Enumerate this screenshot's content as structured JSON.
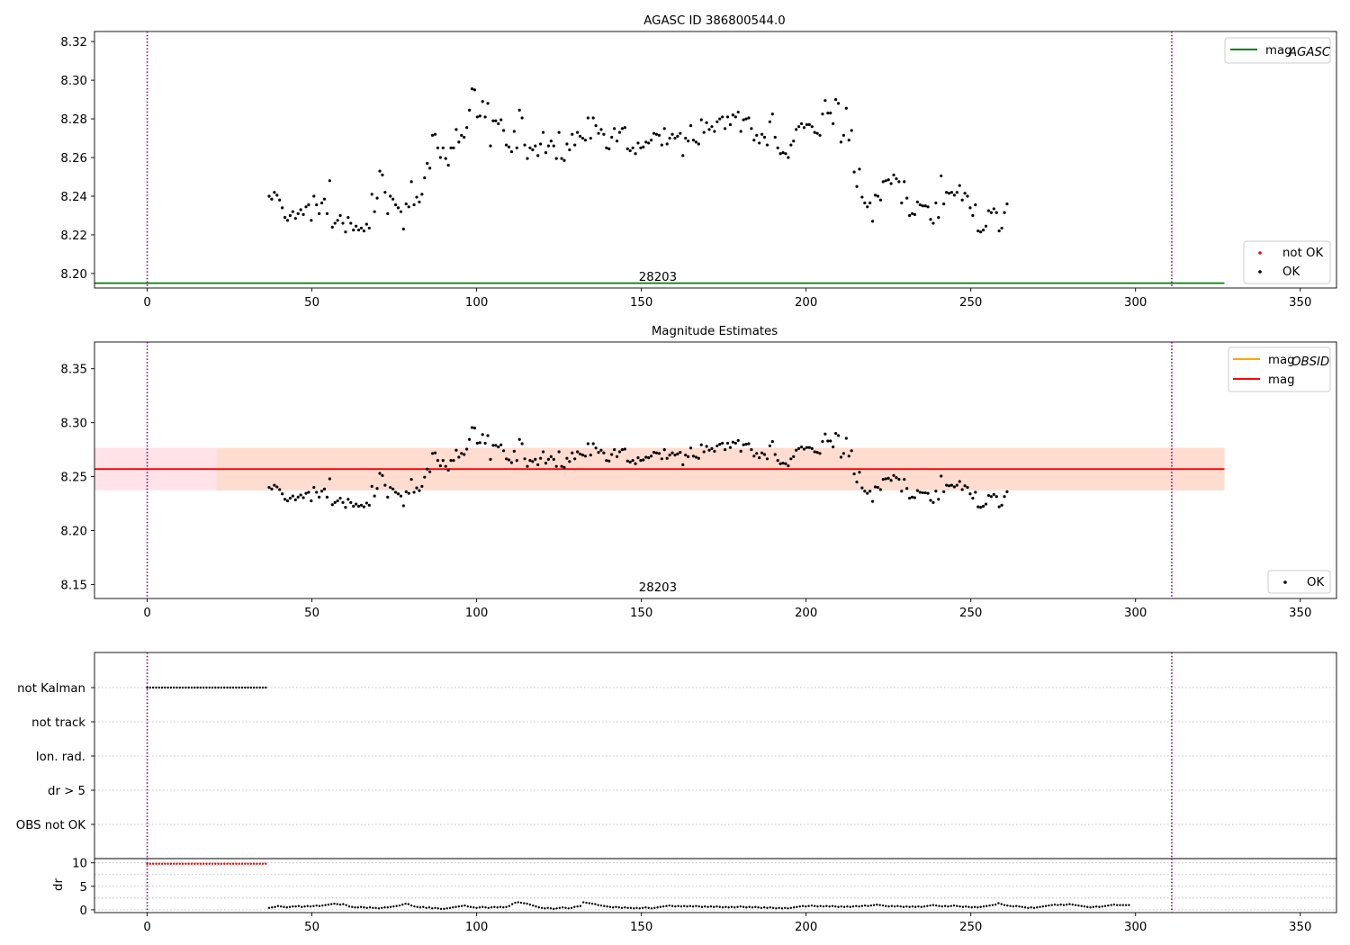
{
  "colors": {
    "ok": "#000000",
    "not_ok": "#ff0000",
    "agasc": "#008000",
    "mag": "#ff0000",
    "obsid": "#ffa500",
    "obsid_band": "#ffdac8",
    "mag_band": "#ffc0cb",
    "vline": "#800080"
  },
  "chart_data": [
    {
      "type": "scatter",
      "title": "AGASC ID 386800544.0",
      "xlim": [
        -16,
        361
      ],
      "ylim": [
        8.1925,
        8.3252
      ],
      "xticks": [
        0,
        50,
        100,
        150,
        200,
        250,
        300,
        350
      ],
      "yticks": [
        "8.20",
        "8.22",
        "8.24",
        "8.26",
        "8.28",
        "8.30",
        "8.32"
      ],
      "legend_lines": {
        "agasc": "mag",
        "agasc_sub": "AGASC"
      },
      "legend_points": {
        "not_ok": "not OK",
        "ok": "OK"
      },
      "agasc_mag": 8.195,
      "agasc_line_x": [
        -16,
        327
      ],
      "obsid_label": "28203",
      "obsid_label_x": 155,
      "vlines": [
        0,
        311
      ]
    },
    {
      "type": "scatter",
      "title": "Magnitude Estimates",
      "xlim": [
        -16,
        361
      ],
      "ylim": [
        8.137,
        8.3748
      ],
      "xticks": [
        0,
        50,
        100,
        150,
        200,
        250,
        300,
        350
      ],
      "yticks": [
        "8.15",
        "8.20",
        "8.25",
        "8.30",
        "8.35"
      ],
      "legend_lines": {
        "obsid": "mag",
        "obsid_sub": "OBSID",
        "mag": "mag"
      },
      "legend_points": {
        "ok": "OK"
      },
      "mag": 8.257,
      "mag_band": [
        8.2373,
        8.2767
      ],
      "obsid_mag": 8.257,
      "obsid_band": [
        8.2373,
        8.2767
      ],
      "line_x": [
        -16,
        327
      ],
      "obsid_label": "28203",
      "obsid_label_x": 155,
      "vlines": [
        0,
        311
      ]
    },
    {
      "type": "scatter",
      "xlim": [
        -16,
        361
      ],
      "categories": [
        "not Kalman",
        "not track",
        "Ion. rad.",
        "dr > 5",
        "OBS not OK"
      ],
      "flag_not_kalman_x": [
        0,
        36.5
      ],
      "vlines": [
        0,
        311
      ]
    },
    {
      "type": "scatter",
      "ylabel": "dr",
      "xlim": [
        -16,
        361
      ],
      "ylim": [
        -0.6,
        10.9
      ],
      "xticks": [
        0,
        50,
        100,
        150,
        200,
        250,
        300,
        350
      ],
      "yticks": [
        "0",
        "5",
        "10"
      ],
      "red_x": [
        0,
        36.5
      ],
      "red_y": 9.8,
      "vlines": [
        0,
        311
      ]
    }
  ],
  "mag_series": {
    "x_start": 37,
    "x_step": 0.8,
    "y": [
      8.24,
      8.2385,
      8.242,
      8.2405,
      8.238,
      8.234,
      8.229,
      8.2275,
      8.23,
      8.232,
      8.2285,
      8.231,
      8.233,
      8.2305,
      8.2345,
      8.2355,
      8.2275,
      8.24,
      8.2355,
      8.231,
      8.2365,
      8.2385,
      8.231,
      8.248,
      8.224,
      8.226,
      8.2275,
      8.23,
      8.226,
      8.2215,
      8.229,
      8.226,
      8.2225,
      8.2245,
      8.2225,
      8.2235,
      8.222,
      8.2255,
      8.2235,
      8.241,
      8.232,
      8.239,
      8.253,
      8.251,
      8.242,
      8.231,
      8.24,
      8.2385,
      8.2355,
      8.234,
      8.232,
      8.223,
      8.236,
      8.2345,
      8.2475,
      8.2355,
      8.2395,
      8.237,
      8.241,
      8.2495,
      8.257,
      8.2545,
      8.2715,
      8.272,
      8.265,
      8.26,
      8.265,
      8.2595,
      8.256,
      8.265,
      8.265,
      8.2745,
      8.268,
      8.2715,
      8.2705,
      8.2755,
      8.2845,
      8.2955,
      8.295,
      8.281,
      8.2815,
      8.289,
      8.281,
      8.288,
      8.266,
      8.279,
      8.279,
      8.2775,
      8.2795,
      8.274,
      8.2665,
      8.2655,
      8.263,
      8.2735,
      8.265,
      8.2845,
      8.2805,
      8.2665,
      8.2595,
      8.265,
      8.264,
      8.266,
      8.261,
      8.267,
      8.273,
      8.2625,
      8.266,
      8.2685,
      8.266,
      8.2595,
      8.273,
      8.2595,
      8.2585,
      8.267,
      8.264,
      8.272,
      8.2665,
      8.273,
      8.271,
      8.27,
      8.269,
      8.2805,
      8.27,
      8.2805,
      8.2765,
      8.2725,
      8.2745,
      8.272,
      8.265,
      8.2645,
      8.2705,
      8.275,
      8.2685,
      8.273,
      8.275,
      8.2755,
      8.2645,
      8.2635,
      8.265,
      8.262,
      8.2675,
      8.265,
      8.2655,
      8.268,
      8.2675,
      8.269,
      8.2725,
      8.272,
      8.2715,
      8.2665,
      8.275,
      8.267,
      8.27,
      8.272,
      8.27,
      8.271,
      8.2725,
      8.261,
      8.27,
      8.2685,
      8.2765,
      8.269,
      8.268,
      8.267,
      8.2795,
      8.273,
      8.278,
      8.2745,
      8.276,
      8.2735,
      8.2785,
      8.28,
      8.281,
      8.275,
      8.281,
      8.277,
      8.282,
      8.281,
      8.2835,
      8.2735,
      8.2795,
      8.28,
      8.2805,
      8.275,
      8.269,
      8.2715,
      8.2675,
      8.272,
      8.2705,
      8.2665,
      8.2785,
      8.2825,
      8.2705,
      8.265,
      8.262,
      8.2625,
      8.262,
      8.26,
      8.2665,
      8.2685,
      8.2745,
      8.276,
      8.2775,
      8.2755,
      8.277,
      8.277,
      8.276,
      8.273,
      8.2725,
      8.2715,
      8.2825,
      8.2895,
      8.283,
      8.283,
      8.2775,
      8.29,
      8.288,
      8.268,
      8.2715,
      8.2855,
      8.269,
      8.274,
      8.2525,
      8.245,
      8.254,
      8.2395,
      8.2365,
      8.2345,
      8.2365,
      8.227,
      8.2405,
      8.24,
      8.238,
      8.2475,
      8.248,
      8.2485,
      8.2465,
      8.251,
      8.249,
      8.2475,
      8.2365,
      8.2475,
      8.239,
      8.23,
      8.231,
      8.2305,
      8.237,
      8.2355,
      8.235,
      8.235,
      8.2345,
      8.228,
      8.226,
      8.2365,
      8.229,
      8.2505,
      8.236,
      8.242,
      8.2415,
      8.242,
      8.2405,
      8.242,
      8.2455,
      8.238,
      8.2415,
      8.24,
      8.234,
      8.23,
      8.2355,
      8.222,
      8.2215,
      8.2225,
      8.2245,
      8.2325,
      8.2315,
      8.2335,
      8.2315,
      8.222,
      8.2235,
      8.2315,
      8.236
    ]
  },
  "dr_series": {
    "x_start": 37,
    "x_step": 0.9,
    "y": [
      0.4,
      0.5,
      0.6,
      0.8,
      0.7,
      0.6,
      0.5,
      0.6,
      0.7,
      0.7,
      0.8,
      0.6,
      0.7,
      0.8,
      0.7,
      0.8,
      0.9,
      0.8,
      0.9,
      1.0,
      1.1,
      1.2,
      1.3,
      1.2,
      1.1,
      1.2,
      1.0,
      0.7,
      0.6,
      0.5,
      0.5,
      0.6,
      0.5,
      0.4,
      0.5,
      0.4,
      0.4,
      0.3,
      0.4,
      0.5,
      0.5,
      0.6,
      0.7,
      0.8,
      0.9,
      1.1,
      1.3,
      1.2,
      0.9,
      0.7,
      0.6,
      0.5,
      0.6,
      0.4,
      0.5,
      0.3,
      0.4,
      0.3,
      0.2,
      0.2,
      0.3,
      0.4,
      0.5,
      0.6,
      0.7,
      0.8,
      0.9,
      0.7,
      0.6,
      0.5,
      0.4,
      0.5,
      0.6,
      0.5,
      0.4,
      0.5,
      0.6,
      0.5,
      0.6,
      0.5,
      0.6,
      0.8,
      1.2,
      1.5,
      1.6,
      1.5,
      1.4,
      1.3,
      1.1,
      0.9,
      0.7,
      0.5,
      0.4,
      0.3,
      0.4,
      0.3,
      0.2,
      0.3,
      0.4,
      0.5,
      0.4,
      0.3,
      0.4,
      0.6,
      0.7,
      0.8,
      1.6,
      1.5,
      1.4,
      1.3,
      1.2,
      1.0,
      0.9,
      0.8,
      0.7,
      0.6,
      0.5,
      0.6,
      0.5,
      0.4,
      0.5,
      0.4,
      0.4,
      0.3,
      0.4,
      0.3,
      0.4,
      0.5,
      0.4,
      0.3,
      0.4,
      0.5,
      0.6,
      0.7,
      0.8,
      0.9,
      0.8,
      0.7,
      0.8,
      0.7,
      0.8,
      0.7,
      0.8,
      0.7,
      0.8,
      0.7,
      0.6,
      0.7,
      0.6,
      0.7,
      0.6,
      0.7,
      0.6,
      0.5,
      0.6,
      0.5,
      0.6,
      0.5,
      0.6,
      0.7,
      0.6,
      0.5,
      0.6,
      0.5,
      0.6,
      0.5,
      0.4,
      0.5,
      0.4,
      0.5,
      0.4,
      0.3,
      0.4,
      0.3,
      0.4,
      0.3,
      0.4,
      0.5,
      0.6,
      0.7,
      0.8,
      0.7,
      0.8,
      0.9,
      0.8,
      0.7,
      0.8,
      0.7,
      0.8,
      0.7,
      0.8,
      0.7,
      0.6,
      0.7,
      0.6,
      0.7,
      0.6,
      0.7,
      0.8,
      0.7,
      0.8,
      0.9,
      0.8,
      0.9,
      1.0,
      1.1,
      1.0,
      0.9,
      0.8,
      0.7,
      0.8,
      0.7,
      0.8,
      0.7,
      0.6,
      0.7,
      0.6,
      0.7,
      0.6,
      0.7,
      0.6,
      0.7,
      0.8,
      0.9,
      1.0,
      0.9,
      0.8,
      0.7,
      0.8,
      0.7,
      0.8,
      0.9,
      0.8,
      0.7,
      0.6,
      0.7,
      0.6,
      0.5,
      0.6,
      0.5,
      0.6,
      0.7,
      0.8,
      0.9,
      1.0,
      1.1,
      1.4,
      1.2,
      1.0,
      0.9,
      0.8,
      0.7,
      0.8,
      0.7,
      0.6,
      0.5,
      0.4,
      0.5,
      0.4,
      0.5,
      0.6,
      0.7,
      0.8,
      0.9,
      1.0,
      1.1,
      1.0,
      1.1,
      1.0,
      1.1,
      1.2,
      1.1,
      1.0,
      0.9,
      0.8,
      0.7,
      0.6,
      0.5,
      0.6,
      0.7,
      0.6,
      0.7,
      0.8,
      0.9,
      1.0,
      1.1,
      1.0,
      1.0,
      1.0,
      1.0,
      1.0
    ]
  }
}
